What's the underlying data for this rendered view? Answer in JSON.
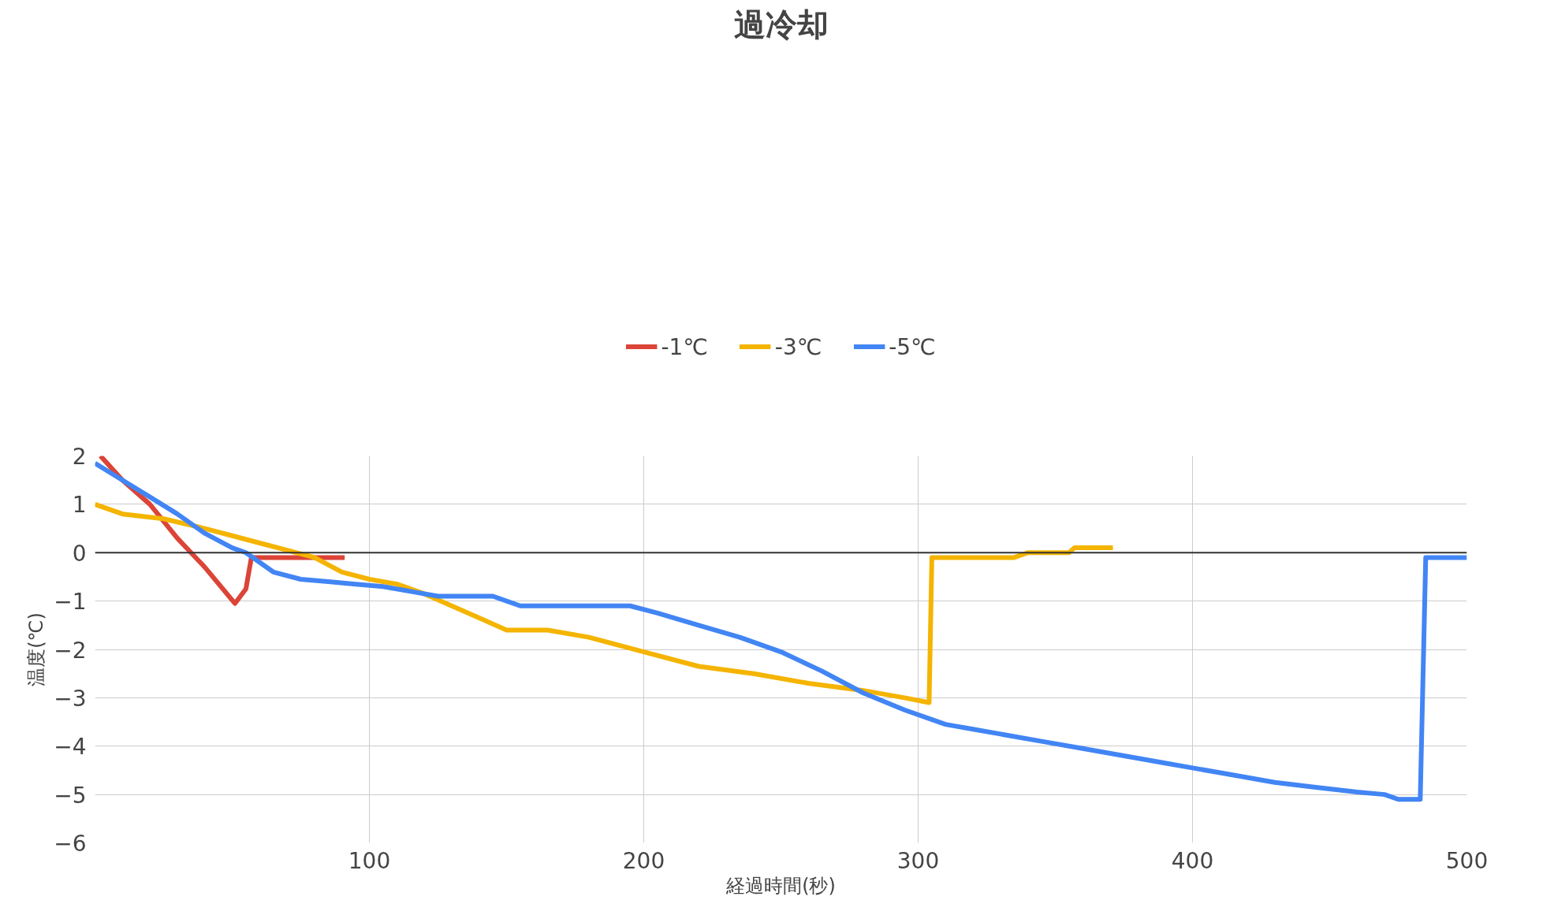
{
  "chart_data": {
    "type": "line",
    "title": "過冷却",
    "xlabel": "経過時間(秒)",
    "ylabel": "温度(℃)",
    "xlim": [
      0,
      500
    ],
    "xticks": [
      100,
      200,
      300,
      400,
      500
    ],
    "ylim": [
      -6,
      2
    ],
    "yticks": [
      -6,
      -5,
      -4,
      -3,
      -2,
      -1,
      0,
      1,
      2
    ],
    "grid": true,
    "legend": "top",
    "line_style": "solid",
    "ref_lines": [
      {
        "axis": "y",
        "value": 0,
        "color": "#333333"
      }
    ],
    "series": [
      {
        "name": "-1℃",
        "color": "#db4437",
        "x": [
          2,
          10,
          20,
          30,
          40,
          51,
          55,
          57,
          65,
          91
        ],
        "values": [
          2,
          1.5,
          1.0,
          0.3,
          -0.3,
          -1.05,
          -0.75,
          -0.1,
          -0.1,
          -0.1
        ]
      },
      {
        "name": "-3℃",
        "color": "#f4b400",
        "x": [
          0,
          10,
          25,
          40,
          50,
          60,
          70,
          80,
          90,
          100,
          110,
          120,
          130,
          140,
          150,
          165,
          180,
          200,
          220,
          240,
          260,
          280,
          295,
          304,
          305,
          335,
          340,
          355,
          357,
          371
        ],
        "values": [
          1.0,
          0.8,
          0.7,
          0.5,
          0.35,
          0.2,
          0.05,
          -0.1,
          -0.4,
          -0.55,
          -0.65,
          -0.85,
          -1.1,
          -1.35,
          -1.6,
          -1.6,
          -1.75,
          -2.05,
          -2.35,
          -2.5,
          -2.7,
          -2.85,
          -3.0,
          -3.1,
          -0.1,
          -0.1,
          0.0,
          0.0,
          0.1,
          0.1
        ]
      },
      {
        "name": "-5℃",
        "color": "#4285f4",
        "x": [
          0,
          10,
          20,
          30,
          40,
          50,
          55,
          60,
          65,
          75,
          85,
          95,
          105,
          115,
          125,
          145,
          155,
          195,
          205,
          220,
          235,
          250,
          265,
          280,
          295,
          310,
          320,
          330,
          345,
          360,
          375,
          390,
          400,
          415,
          430,
          445,
          460,
          470,
          475,
          483,
          485,
          500
        ],
        "values": [
          1.85,
          1.5,
          1.15,
          0.8,
          0.4,
          0.1,
          0.0,
          -0.2,
          -0.4,
          -0.55,
          -0.6,
          -0.65,
          -0.7,
          -0.8,
          -0.9,
          -0.9,
          -1.1,
          -1.1,
          -1.25,
          -1.5,
          -1.75,
          -2.05,
          -2.45,
          -2.9,
          -3.25,
          -3.55,
          -3.65,
          -3.75,
          -3.9,
          -4.05,
          -4.2,
          -4.35,
          -4.45,
          -4.6,
          -4.75,
          -4.85,
          -4.95,
          -5.0,
          -5.1,
          -5.1,
          -0.1,
          -0.1
        ]
      }
    ]
  }
}
